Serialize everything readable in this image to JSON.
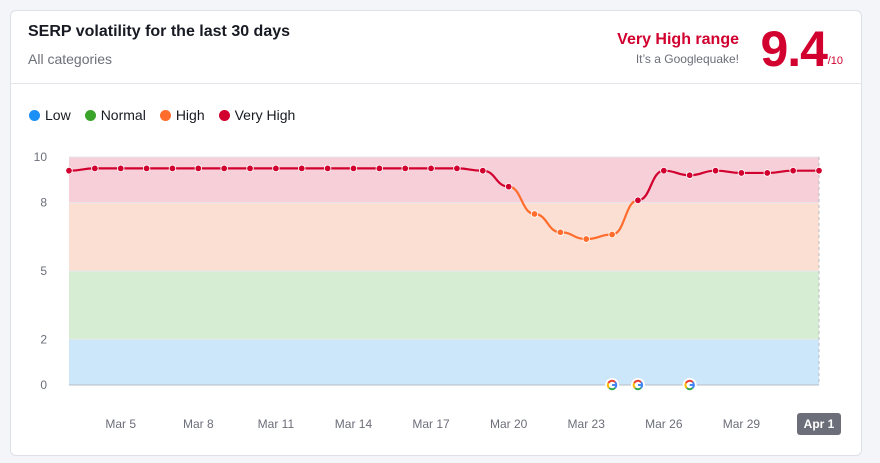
{
  "header": {
    "title": "SERP volatility for the last 30 days",
    "subtitle": "All categories",
    "range_label": "Very High range",
    "range_description": "It’s a Googlequake!",
    "score": "9.4",
    "score_max": "/10"
  },
  "legend": [
    {
      "label": "Low",
      "color": "#1a8ff5"
    },
    {
      "label": "Normal",
      "color": "#3aa42a"
    },
    {
      "label": "High",
      "color": "#ff6c2c"
    },
    {
      "label": "Very High",
      "color": "#d1002f"
    }
  ],
  "chart_data": {
    "type": "line",
    "ylim": [
      0,
      10
    ],
    "y_ticks": [
      "0",
      "2",
      "5",
      "8",
      "10"
    ],
    "bands": [
      {
        "name": "Low",
        "from": 0,
        "to": 2,
        "color": "#cce6fa"
      },
      {
        "name": "Normal",
        "from": 2,
        "to": 5,
        "color": "#d6ecd3"
      },
      {
        "name": "High",
        "from": 5,
        "to": 8,
        "color": "#fcdfd3"
      },
      {
        "name": "Very High",
        "from": 8,
        "to": 10,
        "color": "#f6cfd8"
      }
    ],
    "x_tick_labels": [
      "Mar 5",
      "Mar 8",
      "Mar 11",
      "Mar 14",
      "Mar 17",
      "Mar 20",
      "Mar 23",
      "Mar 26",
      "Mar 29",
      "Apr 1"
    ],
    "x": [
      "Mar 3",
      "Mar 4",
      "Mar 5",
      "Mar 6",
      "Mar 7",
      "Mar 8",
      "Mar 9",
      "Mar 10",
      "Mar 11",
      "Mar 12",
      "Mar 13",
      "Mar 14",
      "Mar 15",
      "Mar 16",
      "Mar 17",
      "Mar 18",
      "Mar 19",
      "Mar 20",
      "Mar 21",
      "Mar 22",
      "Mar 23",
      "Mar 24",
      "Mar 25",
      "Mar 26",
      "Mar 27",
      "Mar 28",
      "Mar 29",
      "Mar 30",
      "Mar 31",
      "Apr 1"
    ],
    "series": [
      {
        "values": [
          9.4,
          9.5,
          9.5,
          9.5,
          9.5,
          9.5,
          9.5,
          9.5,
          9.5,
          9.5,
          9.5,
          9.5,
          9.5,
          9.5,
          9.5,
          9.5,
          9.4,
          8.7,
          7.5,
          6.7,
          6.4,
          6.6,
          8.1,
          9.4,
          9.2,
          9.4,
          9.3,
          9.3,
          9.4,
          9.4
        ]
      }
    ],
    "high_color": "#ff6c2c",
    "very_high_color": "#d1002f",
    "google_update_markers": [
      "Mar 24",
      "Mar 25",
      "Mar 27"
    ],
    "highlighted_x_label": "Apr 1"
  }
}
